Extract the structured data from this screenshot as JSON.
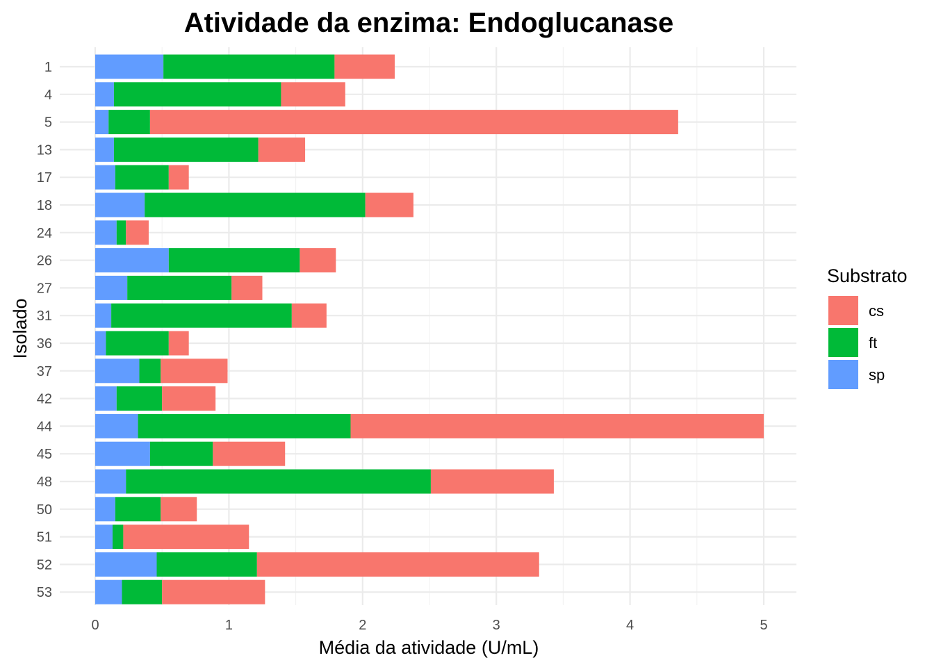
{
  "chart_data": {
    "type": "bar",
    "orientation": "horizontal",
    "stacked": true,
    "title": "Atividade da enzima: Endoglucanase",
    "xlabel": "Média da atividade (U/mL)",
    "ylabel": "Isolado",
    "xlim": [
      0,
      5.2
    ],
    "xticks": [
      0,
      1,
      2,
      3,
      4,
      5
    ],
    "grid": true,
    "legend": {
      "title": "Substrato",
      "position": "right"
    },
    "categories": [
      "1",
      "4",
      "5",
      "13",
      "17",
      "18",
      "24",
      "26",
      "27",
      "31",
      "36",
      "37",
      "42",
      "44",
      "45",
      "48",
      "50",
      "51",
      "52",
      "53"
    ],
    "series": [
      {
        "name": "sp",
        "color": "#619CFF",
        "values": [
          0.51,
          0.14,
          0.1,
          0.14,
          0.15,
          0.37,
          0.16,
          0.55,
          0.24,
          0.12,
          0.08,
          0.33,
          0.16,
          0.32,
          0.41,
          0.23,
          0.15,
          0.13,
          0.46,
          0.2
        ]
      },
      {
        "name": "ft",
        "color": "#00BA38",
        "values": [
          1.28,
          1.25,
          0.31,
          1.08,
          0.4,
          1.65,
          0.07,
          0.98,
          0.78,
          1.35,
          0.47,
          0.16,
          0.34,
          1.59,
          0.47,
          2.28,
          0.34,
          0.08,
          0.75,
          0.3
        ]
      },
      {
        "name": "cs",
        "color": "#F8766D",
        "values": [
          0.45,
          0.48,
          3.95,
          0.35,
          0.15,
          0.36,
          0.17,
          0.27,
          0.23,
          0.26,
          0.15,
          0.5,
          0.4,
          3.09,
          0.54,
          0.92,
          0.27,
          0.94,
          2.11,
          0.77
        ]
      }
    ],
    "legend_order": [
      "cs",
      "ft",
      "sp"
    ]
  }
}
